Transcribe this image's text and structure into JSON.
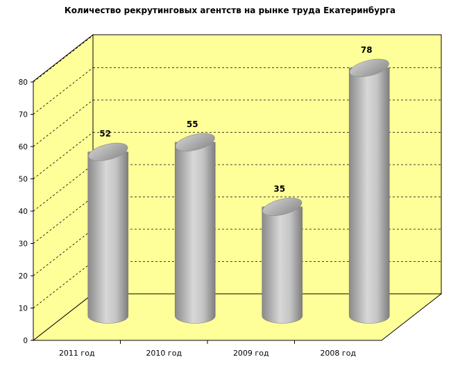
{
  "chart_data": {
    "type": "bar",
    "title": "Количество рекрутинговых агентств на рынке труда Екатеринбурга",
    "categories": [
      "2011 год",
      "2010 год",
      "2009 год",
      "2008 год"
    ],
    "values": [
      52,
      55,
      35,
      78
    ],
    "value_labels": [
      "52",
      "55",
      "35",
      "78"
    ],
    "yticks": [
      "0",
      "10",
      "20",
      "30",
      "40",
      "50",
      "60",
      "70",
      "80"
    ],
    "ylim": [
      0,
      80
    ],
    "grid": true,
    "style": "3d-cylinder",
    "colors": {
      "wall": "#ffff99",
      "bar": "#a0a0a0"
    }
  }
}
